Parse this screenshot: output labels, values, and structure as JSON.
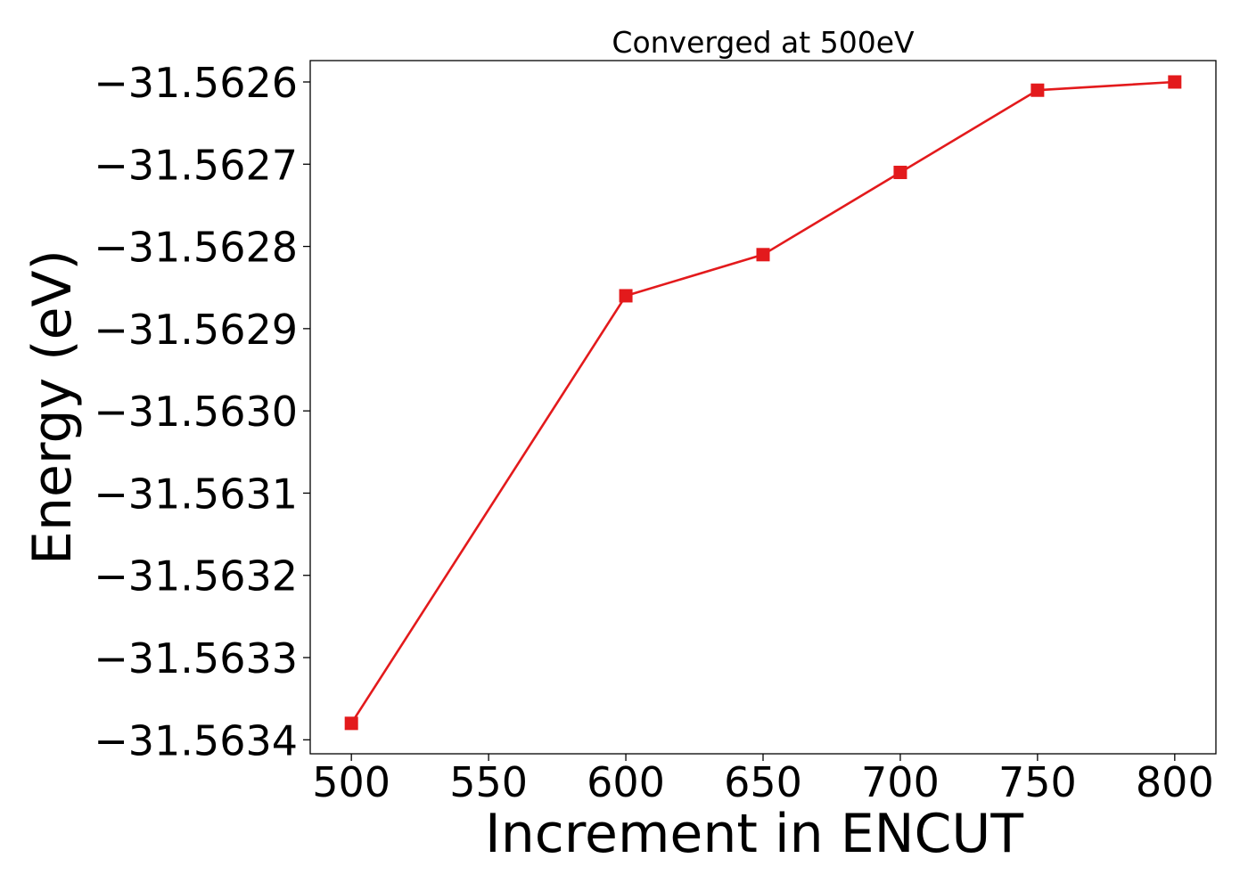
{
  "chart_data": {
    "type": "line",
    "title": "Converged at 500eV",
    "xlabel": "Increment in ENCUT",
    "ylabel": "Energy (eV)",
    "x": [
      500,
      600,
      650,
      700,
      750,
      800
    ],
    "series": [
      {
        "values": [
          -31.56338,
          -31.56286,
          -31.56281,
          -31.56271,
          -31.56261,
          -31.5626
        ],
        "color": "#e31a1c",
        "marker": "square"
      }
    ],
    "xlim": [
      485,
      815
    ],
    "ylim": [
      -31.563417,
      -31.562574
    ],
    "xticks": [
      500,
      550,
      600,
      650,
      700,
      750,
      800
    ],
    "xtick_labels": [
      "500",
      "550",
      "600",
      "650",
      "700",
      "750",
      "800"
    ],
    "yticks": [
      -31.5634,
      -31.5633,
      -31.5632,
      -31.5631,
      -31.563,
      -31.5629,
      -31.5628,
      -31.5627,
      -31.5626
    ],
    "ytick_labels": [
      "−31.5634",
      "−31.5633",
      "−31.5632",
      "−31.5631",
      "−31.5630",
      "−31.5629",
      "−31.5628",
      "−31.5627",
      "−31.5626"
    ],
    "grid": false,
    "legend": "none"
  }
}
